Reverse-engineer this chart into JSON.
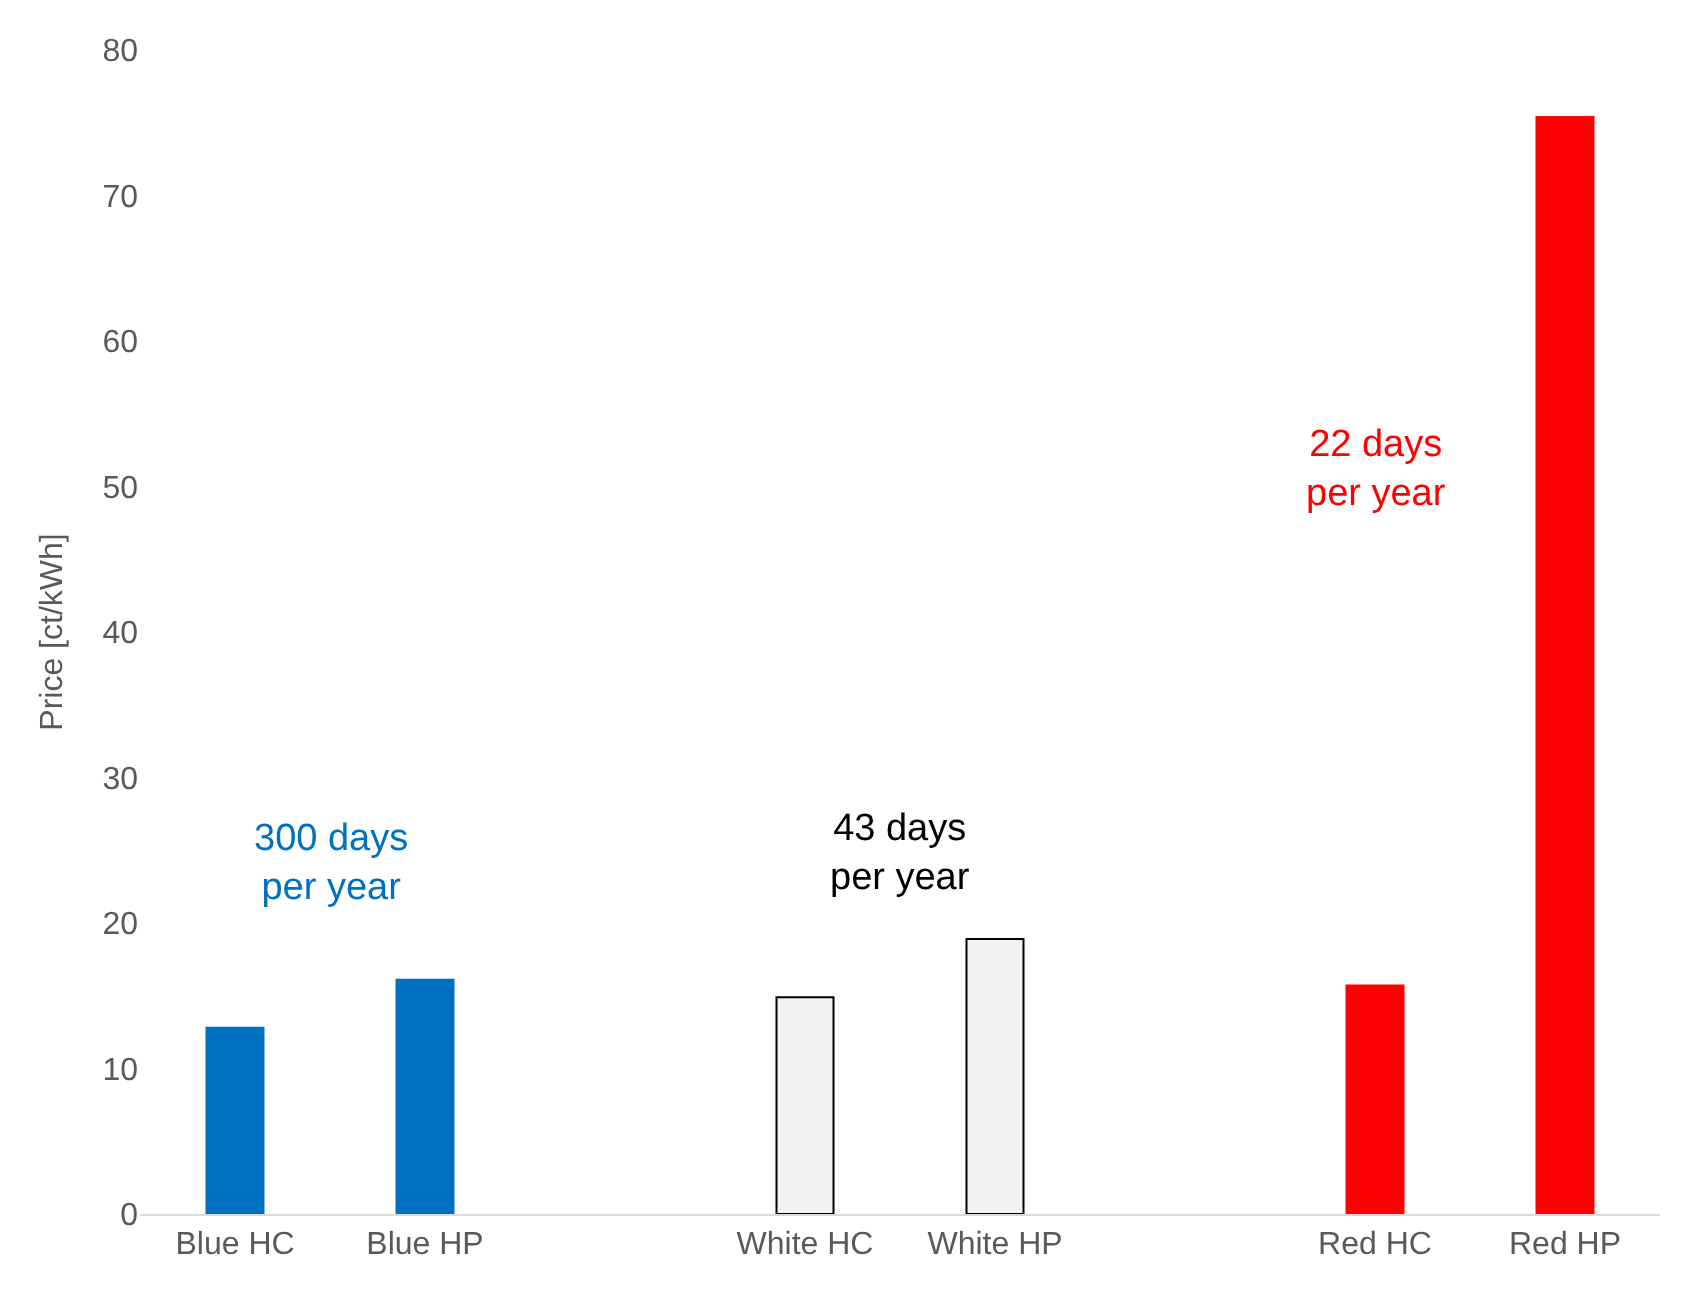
{
  "chart_data": {
    "type": "bar",
    "ylabel": "Price [ct/kWh]",
    "categories": [
      "Blue HC",
      "Blue HP",
      null,
      "White HC",
      "White HP",
      null,
      "Red HC",
      "Red HP"
    ],
    "values": [
      12.8,
      16.1,
      null,
      14.9,
      18.9,
      null,
      15.7,
      75.4
    ],
    "colors": [
      "#0070c0",
      "#0070c0",
      "#ffffff",
      "#f2f2f2",
      "#f2f2f2",
      "#ffffff",
      "#ff0000",
      "#ff0000"
    ],
    "ylim": [
      0,
      80
    ],
    "yticks": [
      0,
      10,
      20,
      30,
      40,
      50,
      60,
      70,
      80
    ],
    "legend": false,
    "annotations": [
      "300 days\nper year",
      "43 days\nper year",
      "22 days\nper year"
    ]
  }
}
